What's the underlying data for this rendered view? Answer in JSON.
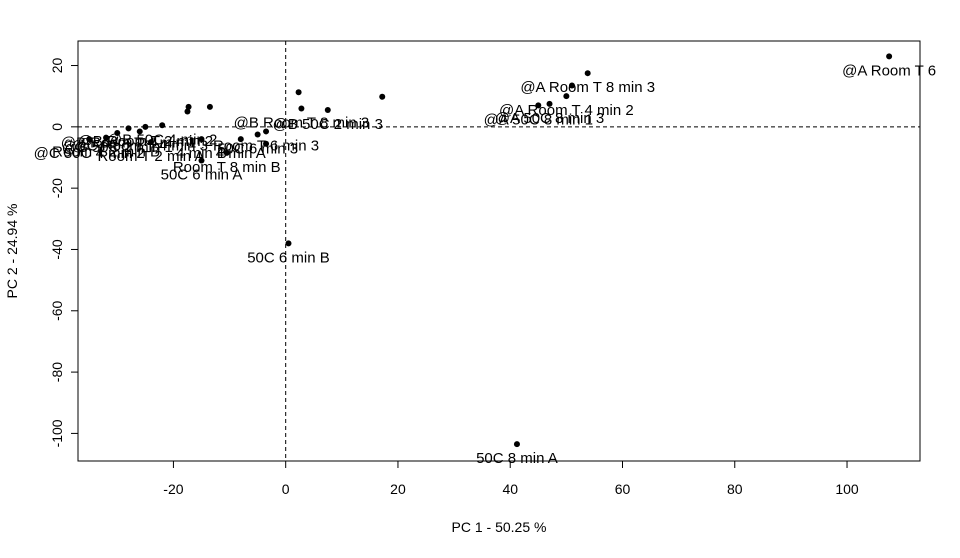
{
  "chart_data": {
    "type": "scatter",
    "title": "",
    "xlabel": "PC 1 - 50.25 %",
    "ylabel": "PC 2 - 24.94 %",
    "xlim": [
      -37,
      113
    ],
    "ylim": [
      -109,
      28
    ],
    "xticks": [
      -20,
      0,
      20,
      40,
      60,
      80,
      100
    ],
    "yticks": [
      20,
      0,
      -20,
      -40,
      -60,
      -80,
      -100
    ],
    "reference_lines": {
      "x": 0,
      "y": 0,
      "style": "dashed"
    },
    "points": [
      {
        "x": 107.5,
        "y": 23,
        "label": "@A Room T 6"
      },
      {
        "x": 53.8,
        "y": 17.5,
        "label": "@A Room T 8 min 3"
      },
      {
        "x": 51,
        "y": 13.5,
        "label": ""
      },
      {
        "x": 50,
        "y": 10,
        "label": "@A Room T 4 min 2"
      },
      {
        "x": 47,
        "y": 7.5,
        "label": "@A 50C 8 min 3"
      },
      {
        "x": 45,
        "y": 7,
        "label": "@A 50C 8 min 1"
      },
      {
        "x": 17.2,
        "y": 9.8,
        "label": ""
      },
      {
        "x": 2.3,
        "y": 11.3,
        "label": ""
      },
      {
        "x": 2.8,
        "y": 6,
        "label": "@B Room T 8 min 3"
      },
      {
        "x": 7.5,
        "y": 5.5,
        "label": "@B 50C 2 min 3"
      },
      {
        "x": -13.5,
        "y": 6.5,
        "label": ""
      },
      {
        "x": -17.3,
        "y": 6.5,
        "label": ""
      },
      {
        "x": -17.5,
        "y": 5,
        "label": ""
      },
      {
        "x": -3.5,
        "y": -1.5,
        "label": "Room T 6 min 3"
      },
      {
        "x": -5,
        "y": -2.5,
        "label": "50C 6 min 3"
      },
      {
        "x": -8,
        "y": -4,
        "label": "4 min A"
      },
      {
        "x": -3.5,
        "y": -5.5,
        "label": ""
      },
      {
        "x": -15,
        "y": -4,
        "label": "4 min B"
      },
      {
        "x": -10.5,
        "y": -8.5,
        "label": "Room T 8 min B"
      },
      {
        "x": -15,
        "y": -11,
        "label": "50C 6 min A"
      },
      {
        "x": -25,
        "y": 0,
        "label": "@B Room T 2 min 2"
      },
      {
        "x": -22,
        "y": 0.5,
        "label": "@B 50C 4 min 2"
      },
      {
        "x": -28,
        "y": -0.5,
        "label": "@B Room T 4 min 1"
      },
      {
        "x": -26,
        "y": -1.5,
        "label": "@C Room T 4 min 3"
      },
      {
        "x": -30,
        "y": -2,
        "label": "@C 50C 2 min 1"
      },
      {
        "x": -32,
        "y": -3.5,
        "label": "Room T 2 min B"
      },
      {
        "x": -35,
        "y": -4,
        "label": "@C 50C 4 min 2"
      },
      {
        "x": -24,
        "y": -5,
        "label": "Room T 2 min A"
      },
      {
        "x": 0.5,
        "y": -38,
        "label": "50C 6 min B"
      },
      {
        "x": 41.2,
        "y": -103.5,
        "label": "50C 8 min A"
      }
    ]
  }
}
